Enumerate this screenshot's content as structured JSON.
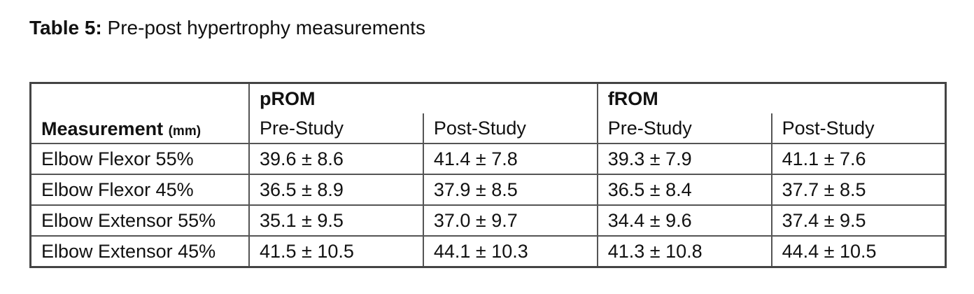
{
  "title": {
    "label": "Table 5:",
    "text": "Pre-post hypertrophy measurements"
  },
  "table": {
    "row_header": {
      "label": "Measurement",
      "unit": "(mm)"
    },
    "groups": [
      "pROM",
      "fROM"
    ],
    "subheaders": [
      "Pre-Study",
      "Post-Study",
      "Pre-Study",
      "Post-Study"
    ],
    "rows": [
      [
        "Elbow Flexor 55%",
        "39.6 ± 8.6",
        "41.4 ± 7.8",
        "39.3 ± 7.9",
        "41.1 ± 7.6"
      ],
      [
        "Elbow Flexor 45%",
        "36.5 ± 8.9",
        "37.9 ± 8.5",
        "36.5 ± 8.4",
        "37.7 ± 8.5"
      ],
      [
        "Elbow Extensor 55%",
        "35.1 ± 9.5",
        "37.0 ± 9.7",
        "34.4 ± 9.6",
        "37.4 ± 9.5"
      ],
      [
        "Elbow Extensor 45%",
        "41.5 ± 10.5",
        "44.1 ± 10.3",
        "41.3 ± 10.8",
        "44.4 ± 10.5"
      ]
    ]
  }
}
